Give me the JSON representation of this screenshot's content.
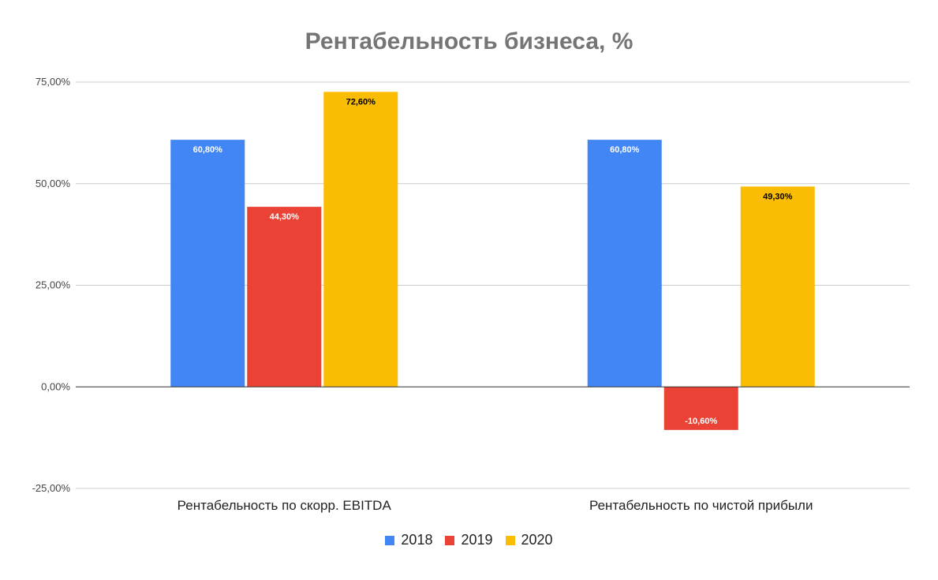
{
  "chart_data": {
    "type": "bar",
    "title": "Рентабельность бизнеса, %",
    "categories": [
      "Рентабельность по скорр. EBITDA",
      "Рентабельность по чистой прибыли"
    ],
    "series": [
      {
        "name": "2018",
        "color": "#4285F4",
        "label_color": "#ffffff",
        "values": [
          60.8,
          60.8
        ],
        "labels": [
          "60,80%",
          "60,80%"
        ]
      },
      {
        "name": "2019",
        "color": "#EA4335",
        "label_color": "#ffffff",
        "values": [
          44.3,
          -10.6
        ],
        "labels": [
          "44,30%",
          "-10,60%"
        ]
      },
      {
        "name": "2020",
        "color": "#FBBC04",
        "label_color": "#000000",
        "values": [
          72.6,
          49.3
        ],
        "labels": [
          "72,60%",
          "49,30%"
        ]
      }
    ],
    "yticks": [
      -25,
      0,
      25,
      50,
      75
    ],
    "ytick_labels": [
      "-25,00%",
      "0,00%",
      "25,00%",
      "50,00%",
      "75,00%"
    ],
    "ylim": [
      -25,
      75
    ],
    "grid": true,
    "legend_position": "bottom"
  }
}
